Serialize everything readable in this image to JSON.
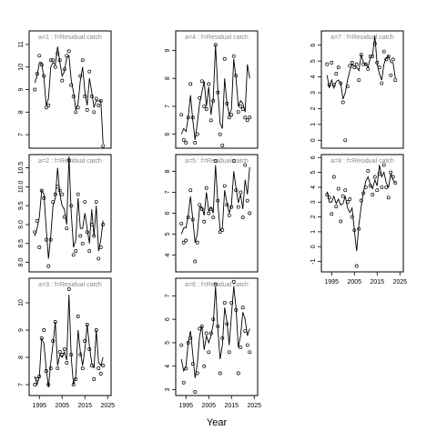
{
  "chart_data": [
    {
      "type": "line",
      "title": "a=1 : f=Residual catch",
      "xlim": [
        1990.5,
        2026.5
      ],
      "ylim": [
        6.4,
        11.6
      ],
      "yticks": [
        7,
        8,
        9,
        10,
        11
      ],
      "x": [
        1993,
        1994,
        1995,
        1996,
        1997,
        1998,
        1999,
        2000,
        2001,
        2002,
        2003,
        2004,
        2005,
        2006,
        2007,
        2008,
        2009,
        2010,
        2011,
        2012,
        2013,
        2014,
        2015,
        2016,
        2017,
        2018,
        2019,
        2020,
        2021,
        2022,
        2023
      ],
      "series": [
        {
          "mode": "points",
          "color": "#000000",
          "values": [
            9.0,
            9.7,
            10.5,
            10.1,
            9.6,
            8.2,
            8.3,
            10.3,
            10.3,
            10.0,
            10.6,
            10.3,
            9.4,
            9.9,
            10.5,
            10.7,
            9.2,
            8.7,
            8.0,
            8.2,
            9.6,
            10.3,
            8.7,
            8.1,
            9.8,
            8.7,
            8.0,
            8.6,
            8.3,
            8.5,
            6.5
          ]
        },
        {
          "mode": "line",
          "color": "#000000",
          "values": [
            9.3,
            9.6,
            10.2,
            10.2,
            9.5,
            8.3,
            8.6,
            10.0,
            10.2,
            10.1,
            10.9,
            10.2,
            9.6,
            9.8,
            10.4,
            10.5,
            9.4,
            8.9,
            8.1,
            8.4,
            9.4,
            10.0,
            8.9,
            8.3,
            9.5,
            8.9,
            8.2,
            8.5,
            8.5,
            8.5,
            6.6
          ]
        }
      ]
    },
    {
      "type": "line",
      "title": "a=2 : f=Residual catch",
      "xlim": [
        1990.5,
        2026.5
      ],
      "ylim": [
        7.75,
        10.85
      ],
      "yticks": [
        {
          "value": 8,
          "label": "8.0"
        },
        8.5,
        {
          "value": 9,
          "label": "9.0"
        },
        9.5,
        {
          "value": 10,
          "label": "10.0"
        },
        10.5
      ],
      "x": [
        1993,
        1994,
        1995,
        1996,
        1997,
        1998,
        1999,
        2000,
        2001,
        2002,
        2003,
        2004,
        2005,
        2006,
        2007,
        2008,
        2009,
        2010,
        2011,
        2012,
        2013,
        2014,
        2015,
        2016,
        2017,
        2018,
        2019,
        2020,
        2021,
        2022,
        2023
      ],
      "series": [
        {
          "mode": "points",
          "color": "#000000",
          "values": [
            8.8,
            9.1,
            8.4,
            9.9,
            9.7,
            8.6,
            7.9,
            8.6,
            9.6,
            9.8,
            10.0,
            9.9,
            9.8,
            9.2,
            8.9,
            10.7,
            9.5,
            8.2,
            8.3,
            9.8,
            8.7,
            8.5,
            9.6,
            8.8,
            8.3,
            9.0,
            8.7,
            9.6,
            8.1,
            8.4,
            9.0
          ]
        },
        {
          "mode": "line",
          "color": "#000000",
          "values": [
            8.7,
            8.9,
            9.2,
            9.9,
            9.8,
            8.9,
            8.1,
            8.7,
            9.5,
            9.7,
            10.5,
            9.8,
            9.5,
            9.4,
            9.0,
            10.8,
            9.3,
            8.4,
            8.6,
            9.7,
            8.9,
            8.9,
            9.3,
            8.9,
            8.5,
            9.4,
            8.7,
            9.5,
            8.3,
            8.6,
            9.1
          ]
        }
      ]
    },
    {
      "type": "line",
      "title": "a=3 : f=Residual catch",
      "xlim": [
        1990.5,
        2026.5
      ],
      "ylim": [
        6.6,
        10.9
      ],
      "yticks": [
        7,
        8,
        9,
        10
      ],
      "xticks": [
        1995,
        2005,
        2015,
        2025
      ],
      "x": [
        1993,
        1994,
        1995,
        1996,
        1997,
        1998,
        1999,
        2000,
        2001,
        2002,
        2003,
        2004,
        2005,
        2006,
        2007,
        2008,
        2009,
        2010,
        2011,
        2012,
        2013,
        2014,
        2015,
        2016,
        2017,
        2018,
        2019,
        2020,
        2021,
        2022,
        2023
      ],
      "series": [
        {
          "mode": "points",
          "color": "#000000",
          "values": [
            7.0,
            7.2,
            7.3,
            8.7,
            9.0,
            7.5,
            7.0,
            7.6,
            8.6,
            9.3,
            7.6,
            8.2,
            8.1,
            8.3,
            7.8,
            10.5,
            8.1,
            7.0,
            7.2,
            9.5,
            8.1,
            7.6,
            8.6,
            9.2,
            8.3,
            7.7,
            7.2,
            9.0,
            7.6,
            7.4,
            7.7
          ]
        },
        {
          "mode": "line",
          "color": "#000000",
          "values": [
            7.3,
            7.0,
            7.3,
            8.7,
            8.5,
            7.6,
            6.9,
            7.8,
            8.5,
            9.3,
            7.7,
            8.1,
            8.0,
            8.2,
            7.9,
            10.3,
            8.0,
            7.0,
            7.3,
            9.0,
            8.2,
            7.7,
            8.3,
            9.2,
            8.4,
            7.8,
            7.6,
            9.0,
            7.8,
            7.7,
            8.0
          ]
        }
      ]
    },
    {
      "type": "line",
      "title": "a=4 : f=Residual catch",
      "xlim": [
        1990.5,
        2026.5
      ],
      "ylim": [
        5.5,
        9.7
      ],
      "yticks": [
        6,
        7,
        8,
        9
      ],
      "x": [
        1993,
        1994,
        1995,
        1996,
        1997,
        1998,
        1999,
        2000,
        2001,
        2002,
        2003,
        2004,
        2005,
        2006,
        2007,
        2008,
        2009,
        2010,
        2011,
        2012,
        2013,
        2014,
        2015,
        2016,
        2017,
        2018,
        2019,
        2020,
        2021,
        2022,
        2023
      ],
      "series": [
        {
          "mode": "points",
          "color": "#000000",
          "values": [
            6.7,
            5.8,
            5.7,
            6.6,
            7.8,
            6.6,
            5.7,
            6.0,
            7.3,
            7.9,
            7.0,
            6.9,
            7.8,
            6.5,
            7.2,
            9.2,
            7.5,
            6.0,
            5.6,
            8.7,
            7.1,
            6.6,
            6.7,
            8.8,
            8.1,
            6.8,
            7.0,
            6.9,
            6.6,
            6.5,
            6.6
          ]
        },
        {
          "mode": "line",
          "color": "#000000",
          "values": [
            6.0,
            6.2,
            6.1,
            6.6,
            7.4,
            6.5,
            5.8,
            6.4,
            7.1,
            7.5,
            7.9,
            7.0,
            7.7,
            6.7,
            7.3,
            9.2,
            7.6,
            6.4,
            6.2,
            8.0,
            7.1,
            6.7,
            6.9,
            8.7,
            8.0,
            7.0,
            7.2,
            7.1,
            6.8,
            8.5,
            8.0
          ]
        }
      ]
    },
    {
      "type": "line",
      "title": "a=5 : f=Residual catch",
      "xlim": [
        1990.5,
        2026.5
      ],
      "ylim": [
        3.2,
        8.8
      ],
      "yticks": [
        4,
        5,
        6,
        7,
        8
      ],
      "x": [
        1993,
        1994,
        1995,
        1996,
        1997,
        1998,
        1999,
        2000,
        2001,
        2002,
        2003,
        2004,
        2005,
        2006,
        2007,
        2008,
        2009,
        2010,
        2011,
        2012,
        2013,
        2014,
        2015,
        2016,
        2017,
        2018,
        2019,
        2020,
        2021,
        2022,
        2023
      ],
      "series": [
        {
          "mode": "points",
          "color": "#000000",
          "values": [
            5.5,
            4.6,
            4.7,
            5.8,
            7.1,
            5.7,
            3.7,
            4.6,
            6.4,
            6.2,
            5.6,
            7.2,
            6.0,
            6.2,
            5.8,
            8.5,
            6.6,
            5.1,
            5.2,
            7.3,
            6.4,
            5.9,
            6.3,
            8.5,
            7.1,
            6.3,
            7.0,
            5.8,
            8.3,
            6.6,
            6.0
          ]
        },
        {
          "mode": "line",
          "color": "#000000",
          "values": [
            5.0,
            5.3,
            5.3,
            5.9,
            6.8,
            5.7,
            4.6,
            5.0,
            6.3,
            6.3,
            5.9,
            7.0,
            6.1,
            6.3,
            6.0,
            8.3,
            6.5,
            5.2,
            5.3,
            7.1,
            6.5,
            6.0,
            6.4,
            8.0,
            7.2,
            6.5,
            6.9,
            6.2,
            7.6,
            6.9,
            8.2
          ]
        }
      ]
    },
    {
      "type": "line",
      "title": "a=6 : f=Residual catch",
      "xlim": [
        1990.5,
        2026.5
      ],
      "ylim": [
        2.75,
        7.75
      ],
      "yticks": [
        3,
        4,
        5,
        6,
        7
      ],
      "xticks": [
        1995,
        2005,
        2015,
        2025
      ],
      "xlabel": "Year",
      "x": [
        1993,
        1994,
        1995,
        1996,
        1997,
        1998,
        1999,
        2000,
        2001,
        2002,
        2003,
        2004,
        2005,
        2006,
        2007,
        2008,
        2009,
        2010,
        2011,
        2012,
        2013,
        2014,
        2015,
        2016,
        2017,
        2018,
        2019,
        2020,
        2021,
        2022,
        2023
      ],
      "series": [
        {
          "mode": "points",
          "color": "#000000",
          "values": [
            4.9,
            3.3,
            3.9,
            5.0,
            5.2,
            4.1,
            2.9,
            3.7,
            5.6,
            5.7,
            4.0,
            5.4,
            4.6,
            5.4,
            6.0,
            7.5,
            5.7,
            3.7,
            5.2,
            6.7,
            5.8,
            4.6,
            6.7,
            7.6,
            6.4,
            3.7,
            4.8,
            6.5,
            5.5,
            4.9,
            4.6
          ]
        },
        {
          "mode": "line",
          "color": "#000000",
          "values": [
            4.3,
            3.8,
            4.0,
            5.0,
            5.5,
            4.5,
            3.5,
            4.1,
            5.3,
            5.7,
            4.7,
            5.3,
            5.0,
            5.3,
            5.8,
            7.4,
            5.6,
            4.3,
            4.9,
            6.5,
            5.9,
            4.9,
            6.2,
            7.4,
            6.5,
            4.8,
            5.3,
            6.3,
            6.0,
            5.3,
            5.6
          ]
        }
      ]
    },
    {
      "type": "line",
      "title": "a=7 : f=Residual catch",
      "xlim": [
        1990.5,
        2026.5
      ],
      "ylim": [
        -0.5,
        6.9
      ],
      "yticks": [
        0,
        1,
        2,
        3,
        4,
        5,
        6
      ],
      "x": [
        1993,
        1994,
        1995,
        1996,
        1997,
        1998,
        1999,
        2000,
        2001,
        2002,
        2003,
        2004,
        2005,
        2006,
        2007,
        2008,
        2009,
        2010,
        2011,
        2012,
        2013,
        2014,
        2015,
        2016,
        2017,
        2018,
        2019,
        2020,
        2021,
        2022,
        2023
      ],
      "series": [
        {
          "mode": "points",
          "color": "#000000",
          "values": [
            4.8,
            3.5,
            4.9,
            3.5,
            4.2,
            4.6,
            3.6,
            2.4,
            0.0,
            3.4,
            4.7,
            4.9,
            4.6,
            4.8,
            3.8,
            5.4,
            4.8,
            4.8,
            4.5,
            5.3,
            5.3,
            6.1,
            4.9,
            4.6,
            3.6,
            5.6,
            5.1,
            5.3,
            4.1,
            5.1,
            3.8
          ]
        },
        {
          "mode": "line",
          "color": "#000000",
          "values": [
            4.1,
            3.3,
            3.8,
            3.3,
            3.7,
            3.8,
            3.6,
            2.6,
            3.0,
            3.8,
            4.4,
            4.8,
            4.7,
            4.6,
            4.4,
            5.4,
            4.9,
            4.8,
            4.6,
            5.2,
            5.4,
            6.6,
            4.8,
            4.2,
            3.8,
            4.8,
            5.2,
            5.3,
            4.9,
            4.9,
            3.9
          ]
        }
      ]
    },
    {
      "type": "line",
      "title": "a=8 : f=Residual catch",
      "xlim": [
        1990.5,
        2026.5
      ],
      "ylim": [
        -1.7,
        6.2
      ],
      "yticks": [
        -1,
        0,
        1,
        2,
        3,
        4,
        5,
        6
      ],
      "xticks": [
        1995,
        2005,
        2015,
        2025
      ],
      "x": [
        1993,
        1994,
        1995,
        1996,
        1997,
        1998,
        1999,
        2000,
        2001,
        2002,
        2003,
        2004,
        2005,
        2006,
        2007,
        2008,
        2009,
        2010,
        2011,
        2012,
        2013,
        2014,
        2015,
        2016,
        2017,
        2018,
        2019,
        2020,
        2021,
        2022,
        2023
      ],
      "series": [
        {
          "mode": "points",
          "color": "#000000",
          "values": [
            3.5,
            3.3,
            2.2,
            4.7,
            2.7,
            3.9,
            1.7,
            3.4,
            3.8,
            3.0,
            3.2,
            2.0,
            1.1,
            -1.3,
            1.2,
            3.1,
            3.6,
            4.0,
            5.1,
            4.1,
            3.5,
            4.7,
            3.8,
            4.9,
            4.0,
            5.5,
            4.0,
            3.3,
            5.0,
            4.7,
            4.3
          ]
        },
        {
          "mode": "line",
          "color": "#000000",
          "values": [
            3.7,
            3.0,
            3.0,
            3.4,
            2.9,
            3.2,
            2.8,
            2.9,
            3.4,
            2.6,
            2.3,
            2.6,
            1.1,
            -0.3,
            1.5,
            2.7,
            3.7,
            4.4,
            4.7,
            4.2,
            3.9,
            4.5,
            4.1,
            5.5,
            4.7,
            5.0,
            4.3,
            4.0,
            4.9,
            4.5,
            4.3
          ]
        }
      ]
    }
  ]
}
